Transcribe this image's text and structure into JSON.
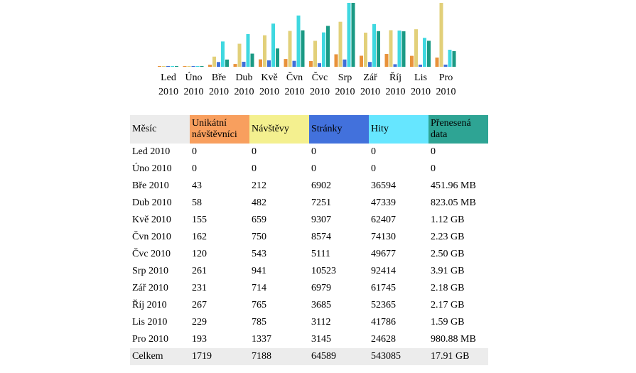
{
  "chart_data": {
    "type": "bar",
    "categories": [
      "Led 2010",
      "Úno 2010",
      "Bře 2010",
      "Dub 2010",
      "Kvě 2010",
      "Čvn 2010",
      "Čvc 2010",
      "Srp 2010",
      "Zář 2010",
      "Říj 2010",
      "Lis 2010",
      "Pro 2010"
    ],
    "category_lines": [
      [
        "Led",
        "2010"
      ],
      [
        "Úno",
        "2010"
      ],
      [
        "Bře",
        "2010"
      ],
      [
        "Dub",
        "2010"
      ],
      [
        "Kvě",
        "2010"
      ],
      [
        "Čvn",
        "2010"
      ],
      [
        "Čvc",
        "2010"
      ],
      [
        "Srp",
        "2010"
      ],
      [
        "Zář",
        "2010"
      ],
      [
        "Říj",
        "2010"
      ],
      [
        "Lis",
        "2010"
      ],
      [
        "Pro",
        "2010"
      ]
    ],
    "series": [
      {
        "name": "Unikátní návštěvníci",
        "color": "#e8923a",
        "values": [
          0,
          0,
          43,
          58,
          155,
          162,
          120,
          261,
          231,
          267,
          229,
          193
        ]
      },
      {
        "name": "Návštěvy",
        "color": "#e2d07a",
        "values": [
          0,
          0,
          212,
          482,
          659,
          750,
          543,
          941,
          714,
          765,
          785,
          1337
        ]
      },
      {
        "name": "Stránky",
        "color": "#3f6fd8",
        "values": [
          0,
          0,
          6902,
          7251,
          9307,
          8574,
          5111,
          10523,
          6979,
          3685,
          3112,
          3145
        ]
      },
      {
        "name": "Hity",
        "color": "#3fd8e0",
        "values": [
          0,
          0,
          36594,
          47339,
          62407,
          74130,
          49677,
          92414,
          61745,
          52365,
          41786,
          24628
        ]
      },
      {
        "name": "Přenesená data",
        "color": "#1a9a84",
        "values": [
          0,
          0,
          451.96,
          823.05,
          1146.88,
          2283.52,
          2560,
          4003.84,
          2232.32,
          2222.08,
          1628.16,
          980.88
        ],
        "unit": "MB"
      }
    ],
    "grouping": [
      [
        0,
        1
      ],
      [
        2,
        3,
        4
      ]
    ]
  },
  "table": {
    "headers": [
      "Měsíc",
      "Unikátní návštěvníci",
      "Návštěvy",
      "Stránky",
      "Hity",
      "Přenesená data"
    ],
    "header_colors": [
      "#ececec",
      "#f89f5e",
      "#f4f08f",
      "#4271dc",
      "#66e6ff",
      "#2ea494"
    ],
    "rows": [
      [
        "Led 2010",
        "0",
        "0",
        "0",
        "0",
        "0"
      ],
      [
        "Úno 2010",
        "0",
        "0",
        "0",
        "0",
        "0"
      ],
      [
        "Bře 2010",
        "43",
        "212",
        "6902",
        "36594",
        "451.96 MB"
      ],
      [
        "Dub 2010",
        "58",
        "482",
        "7251",
        "47339",
        "823.05 MB"
      ],
      [
        "Kvě 2010",
        "155",
        "659",
        "9307",
        "62407",
        "1.12 GB"
      ],
      [
        "Čvn 2010",
        "162",
        "750",
        "8574",
        "74130",
        "2.23 GB"
      ],
      [
        "Čvc 2010",
        "120",
        "543",
        "5111",
        "49677",
        "2.50 GB"
      ],
      [
        "Srp 2010",
        "261",
        "941",
        "10523",
        "92414",
        "3.91 GB"
      ],
      [
        "Zář 2010",
        "231",
        "714",
        "6979",
        "61745",
        "2.18 GB"
      ],
      [
        "Říj 2010",
        "267",
        "765",
        "3685",
        "52365",
        "2.17 GB"
      ],
      [
        "Lis 2010",
        "229",
        "785",
        "3112",
        "41786",
        "1.59 GB"
      ],
      [
        "Pro 2010",
        "193",
        "1337",
        "3145",
        "24628",
        "980.88 MB"
      ]
    ],
    "total": [
      "Celkem",
      "1719",
      "7188",
      "64589",
      "543085",
      "17.91 GB"
    ]
  }
}
